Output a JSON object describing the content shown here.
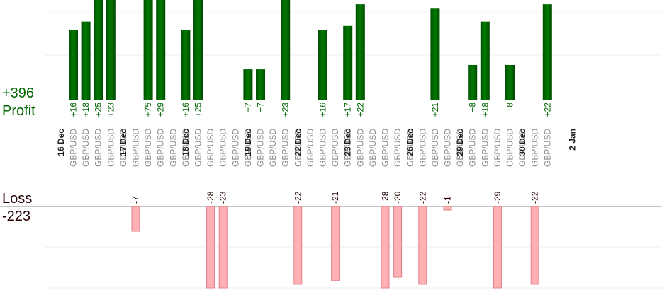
{
  "summary": {
    "profit_total": "+396",
    "profit_label": "Profit",
    "loss_label": "Loss",
    "loss_total": "-223"
  },
  "colors": {
    "profit": "#006600",
    "profit_text": "#006600",
    "loss_fill": "#ffb0b4",
    "loss_stroke": "#e08088",
    "loss_text": "#220000",
    "grid": "#eeeeee",
    "axis": "#888888"
  },
  "chart_data": {
    "type": "bar",
    "profit_ylim": [
      0,
      23
    ],
    "loss_ylim": [
      0,
      -23
    ],
    "trades": [
      {
        "pair": "GBP/USD",
        "value": 16,
        "label": "+16"
      },
      {
        "pair": "GBP/USD",
        "value": 18,
        "label": "+18"
      },
      {
        "pair": "GBP/USD",
        "value": 25,
        "label": "+25"
      },
      {
        "pair": "GBP/USD",
        "value": 23,
        "label": "+23"
      },
      {
        "pair": "GBP/USD",
        "value": 0,
        "label": ""
      },
      {
        "pair": "GBP/USD",
        "value": -7,
        "label": "-7"
      },
      {
        "pair": "GBP/USD",
        "value": 75,
        "label": "+75"
      },
      {
        "pair": "GBP/USD",
        "value": 29,
        "label": "+29"
      },
      {
        "pair": "GBP/USD",
        "value": 0,
        "label": ""
      },
      {
        "pair": "GBP/USD",
        "value": 16,
        "label": "+16"
      },
      {
        "pair": "GBP/USD",
        "value": 25,
        "label": "+25"
      },
      {
        "pair": "GBP/USD",
        "value": -28,
        "label": "-28"
      },
      {
        "pair": "GBP/USD",
        "value": -23,
        "label": "-23"
      },
      {
        "pair": "GBP/USD",
        "value": 0,
        "label": ""
      },
      {
        "pair": "GBP/USD",
        "value": 7,
        "label": "+7"
      },
      {
        "pair": "GBP/USD",
        "value": 7,
        "label": "+7"
      },
      {
        "pair": "GBP/USD",
        "value": 0,
        "label": ""
      },
      {
        "pair": "GBP/USD",
        "value": 23,
        "label": "+23"
      },
      {
        "pair": "GBP/USD",
        "value": -22,
        "label": "-22"
      },
      {
        "pair": "GBP/USD",
        "value": 0,
        "label": ""
      },
      {
        "pair": "GBP/USD",
        "value": 16,
        "label": "+16"
      },
      {
        "pair": "GBP/USD",
        "value": -21,
        "label": "-21"
      },
      {
        "pair": "GBP/USD",
        "value": 17,
        "label": "+17"
      },
      {
        "pair": "GBP/USD",
        "value": 22,
        "label": "+22"
      },
      {
        "pair": "GBP/USD",
        "value": 0,
        "label": ""
      },
      {
        "pair": "GBP/USD",
        "value": -28,
        "label": "-28"
      },
      {
        "pair": "GBP/USD",
        "value": -20,
        "label": "-20"
      },
      {
        "pair": "GBP/USD",
        "value": 0,
        "label": ""
      },
      {
        "pair": "GBP/USD",
        "value": -22,
        "label": "-22"
      },
      {
        "pair": "GBP/USD",
        "value": 21,
        "label": "+21"
      },
      {
        "pair": "GBP/USD",
        "value": -1,
        "label": "-1"
      },
      {
        "pair": "GBP/USD",
        "value": 0,
        "label": ""
      },
      {
        "pair": "GBP/USD",
        "value": 8,
        "label": "+8"
      },
      {
        "pair": "GBP/USD",
        "value": 18,
        "label": "+18"
      },
      {
        "pair": "GBP/USD",
        "value": -29,
        "label": "-29"
      },
      {
        "pair": "GBP/USD",
        "value": 8,
        "label": "+8"
      },
      {
        "pair": "GBP/USD",
        "value": 0,
        "label": ""
      },
      {
        "pair": "GBP/USD",
        "value": -22,
        "label": "-22"
      },
      {
        "pair": "GBP/USD",
        "value": 22,
        "label": "+22"
      }
    ],
    "date_labels": [
      {
        "text": "16 Dec",
        "index": 0
      },
      {
        "text": "17 Dec",
        "index": 5
      },
      {
        "text": "18 Dec",
        "index": 10
      },
      {
        "text": "19 Dec",
        "index": 15
      },
      {
        "text": "22 Dec",
        "index": 19
      },
      {
        "text": "23 Dec",
        "index": 23
      },
      {
        "text": "26 Dec",
        "index": 28
      },
      {
        "text": "29 Dec",
        "index": 32
      },
      {
        "text": "30 Dec",
        "index": 37
      },
      {
        "text": "2 Jan",
        "index": 41
      }
    ]
  }
}
